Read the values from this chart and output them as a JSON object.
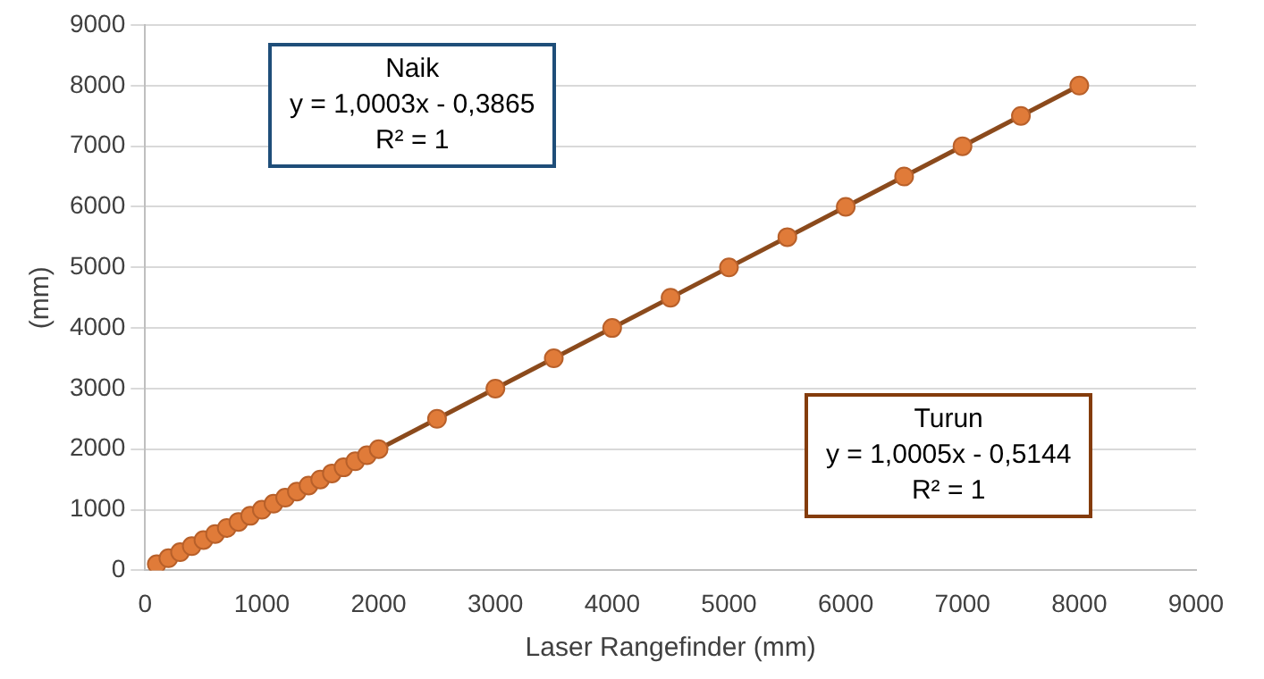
{
  "chart_data": {
    "type": "scatter",
    "xlabel": "Laser Rangefinder (mm)",
    "ylabel": "(mm)",
    "xlim": [
      0,
      9000
    ],
    "xticks": [
      0,
      1000,
      2000,
      3000,
      4000,
      5000,
      6000,
      7000,
      8000,
      9000
    ],
    "ylim": [
      0,
      9000
    ],
    "yticks": [
      0,
      1000,
      2000,
      3000,
      4000,
      5000,
      6000,
      7000,
      8000,
      9000
    ],
    "grid": "y",
    "marker": "circle",
    "legend": false,
    "annotations": [
      "Naik\ny = 1,0003x - 0,3865\nR² = 1",
      "Turun\ny = 1,0005x - 0,5144\nR² = 1"
    ],
    "series": [
      {
        "type": "line",
        "color": "#8b4a1c",
        "marker": "none",
        "x": [
          100,
          8000
        ],
        "values": [
          100,
          8000
        ]
      },
      {
        "color": "#e07b39",
        "x": [
          100,
          200,
          300,
          400,
          500,
          600,
          700,
          800,
          900,
          1000,
          1100,
          1200,
          1300,
          1400,
          1500,
          1600,
          1700,
          1800,
          1900,
          2000,
          2500,
          3000,
          3500,
          4000,
          4500,
          5000,
          5500,
          6000,
          6500,
          7000,
          7500,
          8000
        ],
        "values": [
          100,
          200,
          300,
          400,
          500,
          600,
          700,
          800,
          900,
          1000,
          1100,
          1200,
          1300,
          1400,
          1500,
          1600,
          1700,
          1800,
          1900,
          2000,
          2500,
          3000,
          3500,
          4000,
          4500,
          5000,
          5500,
          6000,
          6500,
          7000,
          7500,
          8000
        ]
      }
    ]
  }
}
